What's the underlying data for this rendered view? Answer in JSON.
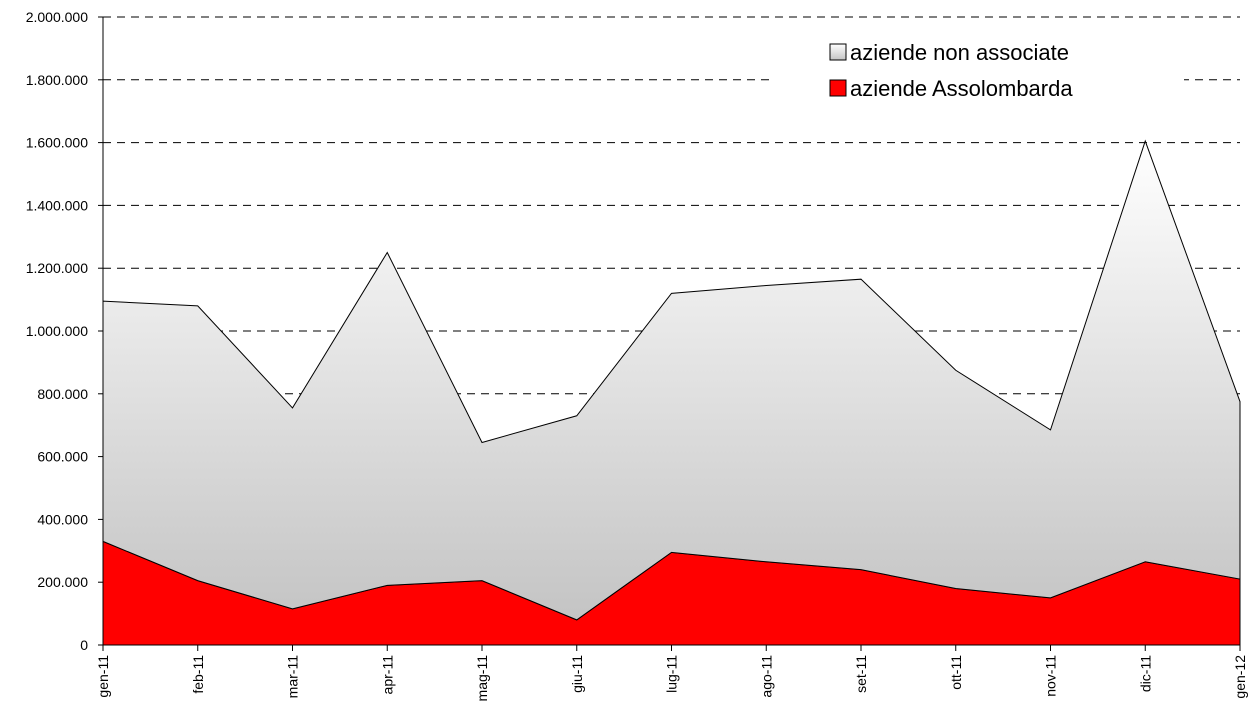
{
  "chart_data": {
    "type": "stacked_area",
    "categories": [
      "gen-11",
      "feb-11",
      "mar-11",
      "apr-11",
      "mag-11",
      "giu-11",
      "lug-11",
      "ago-11",
      "set-11",
      "ott-11",
      "nov-11",
      "dic-11",
      "gen-12"
    ],
    "series": [
      {
        "name": "aziende Assolombarda",
        "color": "#ff0000",
        "values": [
          330000,
          205000,
          115000,
          190000,
          205000,
          80000,
          295000,
          265000,
          240000,
          180000,
          150000,
          265000,
          210000
        ]
      },
      {
        "name": "aziende non associate",
        "color": "#d0d0d0",
        "values": [
          765000,
          875000,
          640000,
          1060000,
          440000,
          650000,
          825000,
          880000,
          925000,
          695000,
          535000,
          1340000,
          565000
        ]
      }
    ],
    "ylim": [
      0,
      2000000
    ],
    "yticks": [
      0,
      {
        "value": 200000,
        "label": "200.000"
      },
      {
        "value": 400000,
        "label": "400.000"
      },
      {
        "value": 600000,
        "label": "600.000"
      },
      {
        "value": 800000,
        "label": "800.000"
      },
      {
        "value": 1000000,
        "label": "1.000.000"
      },
      {
        "value": 1200000,
        "label": "1.200.000"
      },
      {
        "value": 1400000,
        "label": "1.400.000"
      },
      {
        "value": 1600000,
        "label": "1.600.000"
      },
      {
        "value": 1800000,
        "label": "1.800.000"
      },
      {
        "value": 2000000,
        "label": "2.000.000"
      }
    ],
    "grid": true,
    "legend": "top-right"
  }
}
